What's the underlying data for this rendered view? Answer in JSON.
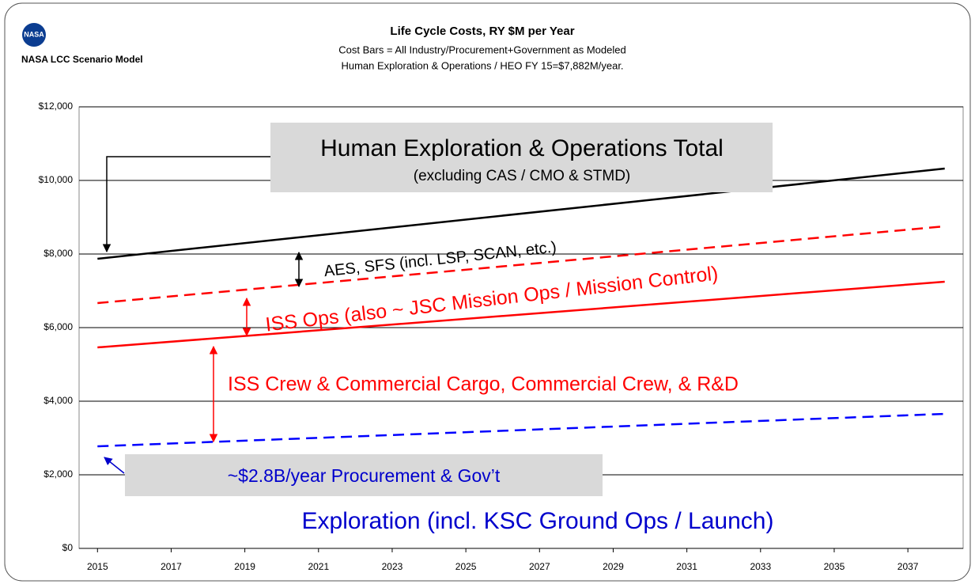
{
  "header": {
    "logo_text": "NASA",
    "model_name": "NASA LCC Scenario Model"
  },
  "chart_data": {
    "type": "line",
    "title": "Life Cycle Costs, RY $M per Year",
    "subtitle": [
      "Cost Bars = All Industry/Procurement+Government as Modeled",
      "Human Exploration & Operations / HEO FY 15=$7,882M/year."
    ],
    "x": [
      2015,
      2038
    ],
    "xlim": [
      2014.5,
      2038.5
    ],
    "xticks": [
      2015,
      2017,
      2019,
      2021,
      2023,
      2025,
      2027,
      2029,
      2031,
      2033,
      2035,
      2037
    ],
    "ylim": [
      0,
      12000
    ],
    "yticks": [
      {
        "value": 0,
        "label": "$0"
      },
      {
        "value": 2000,
        "label": "$2,000"
      },
      {
        "value": 4000,
        "label": "$4,000"
      },
      {
        "value": 6000,
        "label": "$6,000"
      },
      {
        "value": 8000,
        "label": "$8,000"
      },
      {
        "value": 10000,
        "label": "$10,000"
      },
      {
        "value": 12000,
        "label": "$12,000"
      }
    ],
    "grid": true,
    "series": [
      {
        "color": "#000000",
        "dash": false,
        "values": [
          7871,
          10322
        ]
      },
      {
        "color": "#ff0000",
        "dash": true,
        "values": [
          6667,
          8753
        ]
      },
      {
        "color": "#ff0000",
        "dash": false,
        "values": [
          5462,
          7247
        ]
      },
      {
        "color": "#0000ff",
        "dash": true,
        "values": [
          2774,
          3656
        ]
      }
    ],
    "annotations": {
      "total": "Human Exploration & Operations Total",
      "total_note": "(excluding CAS / CMO & STMD)",
      "aes": "AES, SFS (incl. LSP, SCAN, etc.)",
      "iss_ops": "ISS Ops (also ~ JSC Mission Ops / Mission Control)",
      "iss_crew": "ISS Crew & Commercial Cargo, Commercial Crew, & R&D",
      "procurement": "~$2.8B/year Procurement & Gov’t",
      "exploration": "Exploration (incl. KSC Ground Ops / Launch)"
    }
  }
}
